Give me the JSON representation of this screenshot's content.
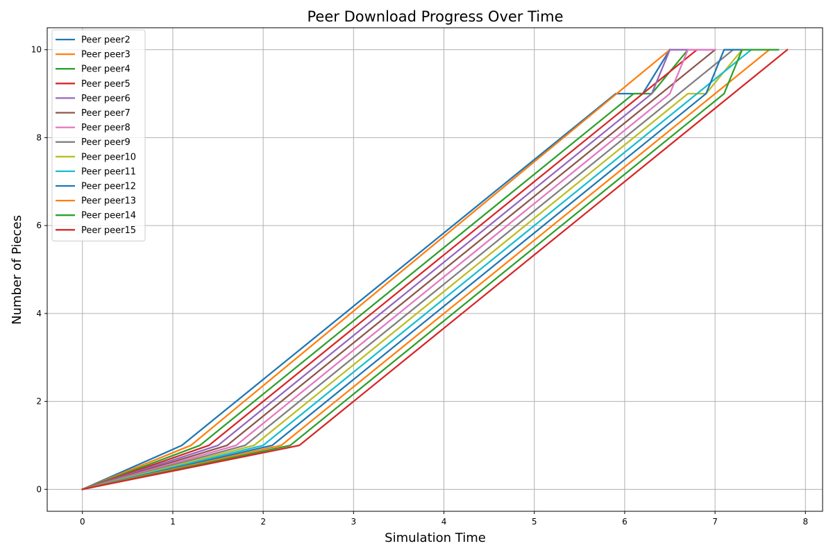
{
  "chart_data": {
    "type": "line",
    "title": "Peer Download Progress Over Time",
    "xlabel": "Simulation Time",
    "ylabel": "Number of Pieces",
    "xlim": [
      -0.39,
      8.19
    ],
    "ylim": [
      -0.5,
      10.5
    ],
    "xticks": [
      0,
      1,
      2,
      3,
      4,
      5,
      6,
      7,
      8
    ],
    "yticks": [
      0,
      2,
      4,
      6,
      8,
      10
    ],
    "grid": true,
    "legend_position": "upper-left",
    "series": [
      {
        "name": "Peer peer2",
        "color": "#1f77b4",
        "x": [
          0,
          1.1,
          5.9,
          6.2,
          6.5
        ],
        "y": [
          0,
          1,
          9,
          9,
          10
        ]
      },
      {
        "name": "Peer peer3",
        "color": "#ff7f0e",
        "x": [
          0,
          1.2,
          6.5
        ],
        "y": [
          0,
          1,
          10
        ]
      },
      {
        "name": "Peer peer4",
        "color": "#2ca02c",
        "x": [
          0,
          1.3,
          6.1,
          6.3,
          6.7
        ],
        "y": [
          0,
          1,
          9,
          9,
          10
        ]
      },
      {
        "name": "Peer peer5",
        "color": "#d62728",
        "x": [
          0,
          1.4,
          6.8
        ],
        "y": [
          0,
          1,
          10
        ]
      },
      {
        "name": "Peer peer6",
        "color": "#9467bd",
        "x": [
          0,
          1.5,
          6.3,
          6.5,
          7.0
        ],
        "y": [
          0,
          1,
          9,
          10,
          10
        ]
      },
      {
        "name": "Peer peer7",
        "color": "#8c564b",
        "x": [
          0,
          1.6,
          7.0
        ],
        "y": [
          0,
          1,
          10
        ]
      },
      {
        "name": "Peer peer8",
        "color": "#e377c2",
        "x": [
          0,
          1.7,
          6.5,
          6.7,
          7.0
        ],
        "y": [
          0,
          1,
          9,
          10,
          10
        ]
      },
      {
        "name": "Peer peer9",
        "color": "#7f7f7f",
        "x": [
          0,
          1.8,
          7.2
        ],
        "y": [
          0,
          1,
          10
        ]
      },
      {
        "name": "Peer peer10",
        "color": "#bcbd22",
        "x": [
          0,
          1.9,
          6.7,
          6.9,
          7.3
        ],
        "y": [
          0,
          1,
          9,
          9,
          10
        ]
      },
      {
        "name": "Peer peer11",
        "color": "#17becf",
        "x": [
          0,
          2.0,
          7.4
        ],
        "y": [
          0,
          1,
          10
        ]
      },
      {
        "name": "Peer peer12",
        "color": "#1f77b4",
        "x": [
          0,
          2.1,
          6.9,
          7.1,
          7.3
        ],
        "y": [
          0,
          1,
          9,
          10,
          10
        ]
      },
      {
        "name": "Peer peer13",
        "color": "#ff7f0e",
        "x": [
          0,
          2.2,
          7.6
        ],
        "y": [
          0,
          1,
          10
        ]
      },
      {
        "name": "Peer peer14",
        "color": "#2ca02c",
        "x": [
          0,
          2.3,
          7.1,
          7.3,
          7.7
        ],
        "y": [
          0,
          1,
          9,
          10,
          10
        ]
      },
      {
        "name": "Peer peer15",
        "color": "#d62728",
        "x": [
          0,
          2.4,
          7.8
        ],
        "y": [
          0,
          1,
          10
        ]
      }
    ]
  }
}
